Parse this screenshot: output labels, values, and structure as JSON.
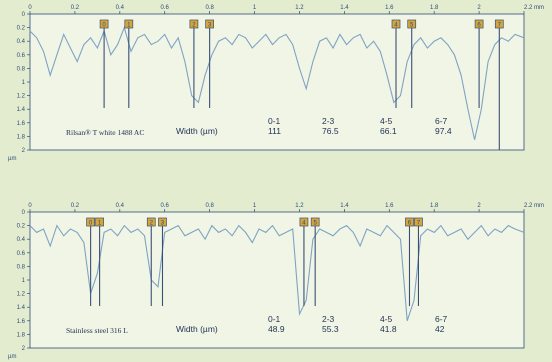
{
  "colors": {
    "background": "#e4eccf",
    "plot_bg": "#f1f5e5",
    "axis": "#2f4b78",
    "profile": "#7fa3c4",
    "marker_line": "#3a4f78",
    "marker_box": "#d4a63a"
  },
  "chart_data": [
    {
      "type": "line",
      "sample_name": "Rilsan® T white 1488 AC",
      "x_axis_unit": "mm",
      "y_axis_unit": "µm",
      "xlim": [
        0,
        2.2
      ],
      "ylim": [
        2,
        0
      ],
      "x_ticks": [
        "0",
        "0.2",
        "0.4",
        "0.6",
        "0.8",
        "1",
        "1.2",
        "1.4",
        "1.6",
        "1.8",
        "2",
        "2.2 mm"
      ],
      "y_ticks": [
        "0",
        "0.2",
        "0.4",
        "0.6",
        "0.8",
        "1",
        "1.2",
        "1.4",
        "1.6",
        "1.8",
        "2"
      ],
      "markers": [
        {
          "label": "0",
          "x": 0.33
        },
        {
          "label": "1",
          "x": 0.44
        },
        {
          "label": "2",
          "x": 0.73
        },
        {
          "label": "3",
          "x": 0.8
        },
        {
          "label": "4",
          "x": 1.63
        },
        {
          "label": "5",
          "x": 1.7
        },
        {
          "label": "6",
          "x": 2.0
        },
        {
          "label": "7",
          "x": 2.09
        }
      ],
      "measurements": {
        "label": "Width (µm)",
        "pairs": [
          "0-1",
          "2-3",
          "4-5",
          "6-7"
        ],
        "values": [
          "111",
          "76.5",
          "66.1",
          "97.4"
        ]
      },
      "profile": {
        "x": [
          0,
          0.03,
          0.06,
          0.09,
          0.12,
          0.15,
          0.18,
          0.21,
          0.24,
          0.27,
          0.3,
          0.33,
          0.36,
          0.39,
          0.42,
          0.45,
          0.48,
          0.51,
          0.54,
          0.57,
          0.6,
          0.63,
          0.66,
          0.69,
          0.72,
          0.75,
          0.78,
          0.81,
          0.84,
          0.87,
          0.9,
          0.93,
          0.96,
          0.99,
          1.02,
          1.05,
          1.08,
          1.11,
          1.14,
          1.17,
          1.2,
          1.23,
          1.26,
          1.29,
          1.32,
          1.35,
          1.38,
          1.41,
          1.44,
          1.47,
          1.5,
          1.53,
          1.56,
          1.59,
          1.62,
          1.65,
          1.68,
          1.71,
          1.74,
          1.77,
          1.8,
          1.83,
          1.86,
          1.89,
          1.92,
          1.95,
          1.98,
          2.01,
          2.04,
          2.07,
          2.1,
          2.13,
          2.16,
          2.2
        ],
        "y": [
          0.25,
          0.35,
          0.55,
          0.9,
          0.6,
          0.3,
          0.5,
          0.7,
          0.45,
          0.35,
          0.5,
          0.25,
          0.6,
          0.45,
          0.2,
          0.55,
          0.35,
          0.3,
          0.45,
          0.4,
          0.3,
          0.5,
          0.35,
          0.7,
          1.2,
          1.3,
          0.9,
          0.6,
          0.4,
          0.35,
          0.45,
          0.3,
          0.35,
          0.5,
          0.4,
          0.3,
          0.45,
          0.35,
          0.3,
          0.45,
          0.8,
          1.1,
          0.7,
          0.4,
          0.35,
          0.5,
          0.3,
          0.45,
          0.35,
          0.3,
          0.5,
          0.4,
          0.55,
          0.9,
          1.3,
          1.2,
          0.7,
          0.45,
          0.35,
          0.5,
          0.4,
          0.35,
          0.45,
          0.6,
          0.9,
          1.4,
          1.85,
          1.4,
          0.7,
          0.45,
          0.35,
          0.4,
          0.3,
          0.35
        ]
      }
    },
    {
      "type": "line",
      "sample_name": "Stainless steel 316 L",
      "x_axis_unit": "mm",
      "y_axis_unit": "µm",
      "xlim": [
        0,
        2.2
      ],
      "ylim": [
        2,
        0
      ],
      "x_ticks": [
        "0",
        "0.2",
        "0.4",
        "0.6",
        "0.8",
        "1",
        "1.2",
        "1.4",
        "1.6",
        "1.8",
        "2",
        "2.2 mm"
      ],
      "y_ticks": [
        "0",
        "0.2",
        "0.4",
        "0.6",
        "0.8",
        "1",
        "1.2",
        "1.4",
        "1.6",
        "1.8",
        "2"
      ],
      "markers": [
        {
          "label": "0",
          "x": 0.27
        },
        {
          "label": "1",
          "x": 0.31
        },
        {
          "label": "2",
          "x": 0.54
        },
        {
          "label": "3",
          "x": 0.59
        },
        {
          "label": "4",
          "x": 1.22
        },
        {
          "label": "5",
          "x": 1.27
        },
        {
          "label": "6",
          "x": 1.69
        },
        {
          "label": "7",
          "x": 1.73
        }
      ],
      "measurements": {
        "label": "Width (µm)",
        "pairs": [
          "0-1",
          "2-3",
          "4-5",
          "6-7"
        ],
        "values": [
          "48.9",
          "55.3",
          "41.8",
          "42"
        ]
      },
      "profile": {
        "x": [
          0,
          0.03,
          0.06,
          0.09,
          0.12,
          0.15,
          0.18,
          0.21,
          0.24,
          0.27,
          0.3,
          0.33,
          0.36,
          0.39,
          0.42,
          0.45,
          0.48,
          0.51,
          0.54,
          0.57,
          0.6,
          0.63,
          0.66,
          0.69,
          0.72,
          0.75,
          0.78,
          0.81,
          0.84,
          0.87,
          0.9,
          0.93,
          0.96,
          0.99,
          1.02,
          1.05,
          1.08,
          1.11,
          1.14,
          1.17,
          1.2,
          1.23,
          1.26,
          1.29,
          1.32,
          1.35,
          1.38,
          1.41,
          1.44,
          1.47,
          1.5,
          1.53,
          1.56,
          1.59,
          1.62,
          1.65,
          1.68,
          1.71,
          1.74,
          1.77,
          1.8,
          1.83,
          1.86,
          1.89,
          1.92,
          1.95,
          1.98,
          2.01,
          2.04,
          2.07,
          2.1,
          2.13,
          2.16,
          2.2
        ],
        "y": [
          0.2,
          0.3,
          0.25,
          0.5,
          0.2,
          0.35,
          0.25,
          0.3,
          0.45,
          1.2,
          0.9,
          0.3,
          0.25,
          0.35,
          0.2,
          0.3,
          0.25,
          0.35,
          1.0,
          1.1,
          0.3,
          0.25,
          0.2,
          0.35,
          0.3,
          0.25,
          0.4,
          0.2,
          0.3,
          0.25,
          0.35,
          0.2,
          0.3,
          0.45,
          0.25,
          0.3,
          0.2,
          0.35,
          0.3,
          0.25,
          1.5,
          1.3,
          0.4,
          0.25,
          0.3,
          0.35,
          0.25,
          0.2,
          0.3,
          0.5,
          0.25,
          0.3,
          0.35,
          0.2,
          0.3,
          0.4,
          1.6,
          1.3,
          0.35,
          0.25,
          0.3,
          0.2,
          0.35,
          0.3,
          0.25,
          0.4,
          0.3,
          0.2,
          0.35,
          0.25,
          0.3,
          0.2,
          0.25,
          0.3
        ]
      }
    }
  ]
}
